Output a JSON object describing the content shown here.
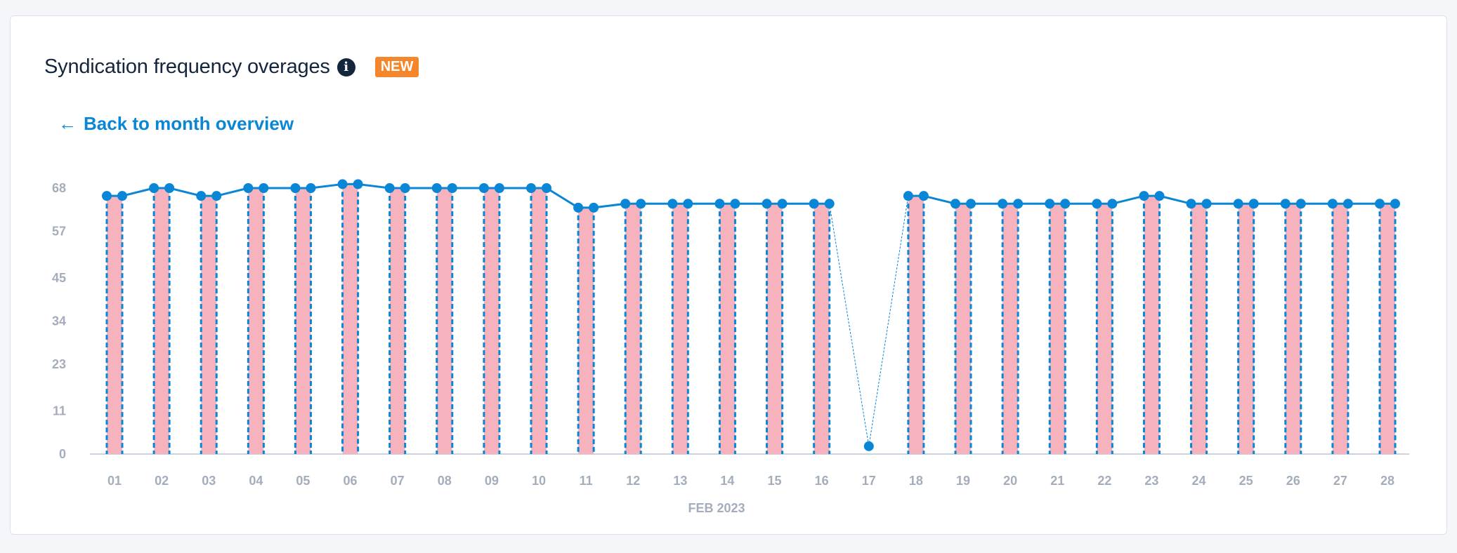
{
  "card": {
    "title": "Syndication frequency overages",
    "info_icon": "info-circle-icon",
    "badge": "NEW",
    "back_link": "Back to month overview",
    "back_icon": "arrow-left-icon"
  },
  "chart_data": {
    "type": "bar+line",
    "xlabel": "FEB 2023",
    "categories": [
      "01",
      "02",
      "03",
      "04",
      "05",
      "06",
      "07",
      "08",
      "09",
      "10",
      "11",
      "12",
      "13",
      "14",
      "15",
      "16",
      "17",
      "18",
      "19",
      "20",
      "21",
      "22",
      "23",
      "24",
      "25",
      "26",
      "27",
      "28"
    ],
    "yticks": [
      0,
      11,
      23,
      34,
      45,
      57,
      68
    ],
    "ylim": [
      0,
      68
    ],
    "values": [
      66,
      68,
      66,
      68,
      68,
      69,
      68,
      68,
      68,
      68,
      63,
      64,
      64,
      64,
      64,
      64,
      2,
      66,
      64,
      64,
      64,
      64,
      66,
      64,
      64,
      64,
      64,
      64
    ],
    "bar_missing": [
      "17"
    ],
    "colors": {
      "bar_fill": "#f7b3bd",
      "line": "#0a86d6",
      "axis": "#ccd3dd"
    },
    "grid": false
  }
}
